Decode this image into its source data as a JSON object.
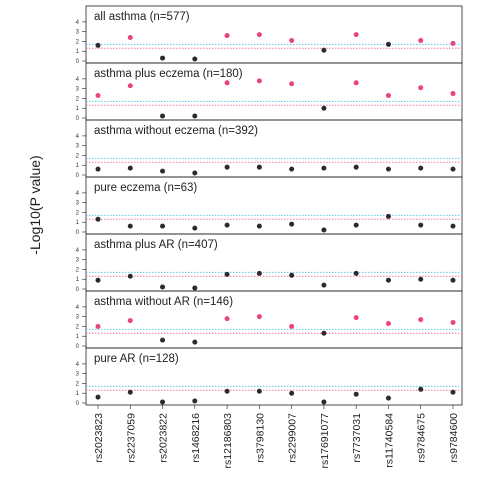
{
  "chart_data": {
    "type": "scatter",
    "ylabel": "-Log10(P value)",
    "yticks": [
      0,
      1,
      2,
      3,
      4
    ],
    "ylim": [
      0,
      4.5
    ],
    "x": [
      "rs2023823",
      "rs2237059",
      "rs2023822",
      "rs1468216",
      "rs12186803",
      "rs3798130",
      "rs2299007",
      "rs17691077",
      "rs7737031",
      "rs11740584",
      "rs9784675",
      "rs9784600"
    ],
    "thresholds": {
      "blue_line": 1.7,
      "pink_line": 1.3
    },
    "colors": {
      "significant": "#e8457a",
      "not_significant": "#2b2b2b",
      "blue_line": "#5bc8e8",
      "pink_line": "#f07aa0",
      "frame": "#222222"
    },
    "panels": [
      {
        "title": "all asthma (n=577)",
        "values": [
          1.6,
          2.4,
          0.3,
          0.2,
          2.6,
          2.7,
          2.1,
          1.1,
          2.7,
          1.7,
          2.1,
          1.8
        ]
      },
      {
        "title": "asthma plus eczema (n=180)",
        "values": [
          2.3,
          3.3,
          0.2,
          0.2,
          3.6,
          3.8,
          3.5,
          1.0,
          3.6,
          2.3,
          3.1,
          2.5
        ]
      },
      {
        "title": "asthma without eczema (n=392)",
        "values": [
          0.6,
          0.7,
          0.4,
          0.2,
          0.8,
          0.8,
          0.6,
          0.7,
          0.8,
          0.6,
          0.7,
          0.6
        ]
      },
      {
        "title": "pure eczema (n=63)",
        "values": [
          1.3,
          0.6,
          0.6,
          0.4,
          0.7,
          0.6,
          0.8,
          0.2,
          0.7,
          1.6,
          0.7,
          0.6
        ]
      },
      {
        "title": "asthma plus AR (n=407)",
        "values": [
          0.9,
          1.3,
          0.2,
          0.1,
          1.5,
          1.6,
          1.4,
          0.4,
          1.6,
          0.9,
          1.0,
          0.9
        ]
      },
      {
        "title": "asthma without AR (n=146)",
        "values": [
          2.0,
          2.6,
          0.6,
          0.4,
          2.8,
          3.0,
          2.0,
          1.3,
          2.9,
          2.3,
          2.7,
          2.4
        ]
      },
      {
        "title": "pure AR (n=128)",
        "values": [
          0.6,
          1.1,
          0.1,
          0.2,
          1.2,
          1.2,
          1.0,
          0.1,
          0.9,
          0.5,
          1.4,
          1.1
        ]
      }
    ]
  }
}
